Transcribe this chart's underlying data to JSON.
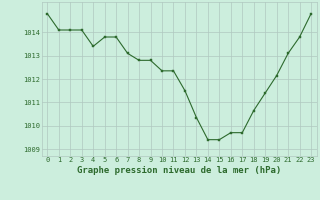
{
  "x": [
    0,
    1,
    2,
    3,
    4,
    5,
    6,
    7,
    8,
    9,
    10,
    11,
    12,
    13,
    14,
    15,
    16,
    17,
    18,
    19,
    20,
    21,
    22,
    23
  ],
  "y": [
    1014.8,
    1014.1,
    1014.1,
    1014.1,
    1013.4,
    1013.8,
    1013.8,
    1013.1,
    1012.8,
    1012.8,
    1012.35,
    1012.35,
    1011.5,
    1010.35,
    1009.4,
    1009.4,
    1009.7,
    1009.7,
    1010.65,
    1011.4,
    1012.15,
    1013.1,
    1013.8,
    1014.8
  ],
  "line_color": "#2d6a2d",
  "marker_color": "#2d6a2d",
  "bg_color": "#cceedd",
  "grid_color": "#b0c8c0",
  "xlabel": "Graphe pression niveau de la mer (hPa)",
  "xlabel_color": "#2d6a2d",
  "tick_color": "#2d6a2d",
  "ylim": [
    1008.7,
    1015.3
  ],
  "xlim": [
    -0.5,
    23.5
  ],
  "yticks": [
    1009,
    1010,
    1011,
    1012,
    1013,
    1014
  ],
  "xticks": [
    0,
    1,
    2,
    3,
    4,
    5,
    6,
    7,
    8,
    9,
    10,
    11,
    12,
    13,
    14,
    15,
    16,
    17,
    18,
    19,
    20,
    21,
    22,
    23
  ],
  "title_fontsize": 6.5,
  "tick_fontsize": 5.0
}
